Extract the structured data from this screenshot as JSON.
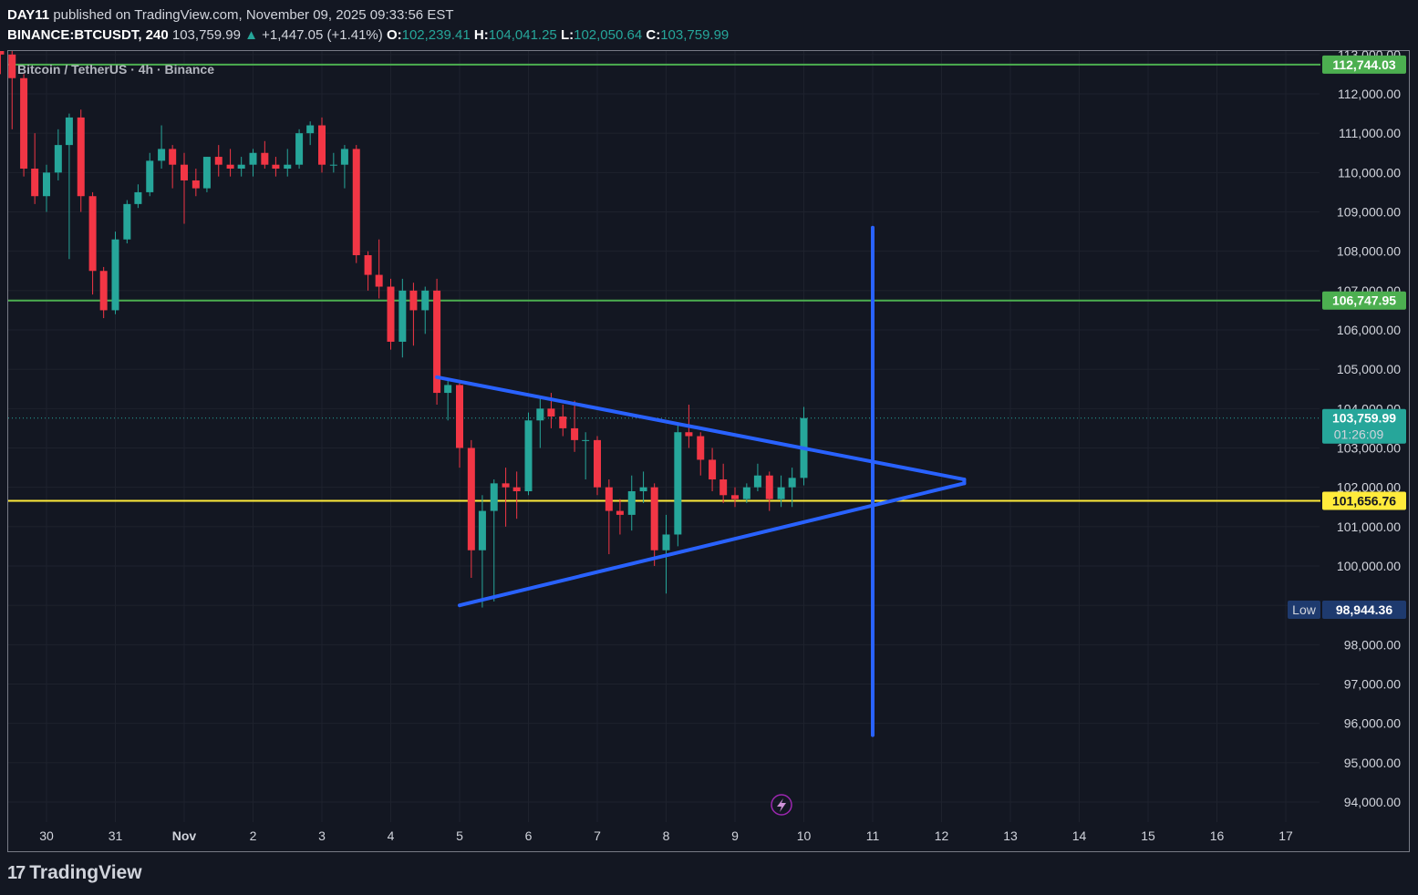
{
  "header": {
    "line1_user": "DAY11",
    "line1_rest": " published on TradingView.com, November 09, 2025 09:33:56 EST",
    "symbol": "BINANCE:BTCUSDT, 240",
    "last": "103,759.99",
    "change_arrow": "▲",
    "change": "+1,447.05 (+1.41%)",
    "o_label": "O:",
    "o": "102,239.41",
    "h_label": "H:",
    "h": "104,041.25",
    "l_label": "L:",
    "l": "102,050.64",
    "c_label": "C:",
    "c": "103,759.99"
  },
  "chart_title": "Bitcoin / TetherUS · 4h · Binance",
  "footer": {
    "brand": "TradingView",
    "logo_icon": "tradingview-logo-icon"
  },
  "colors": {
    "bg": "#131722",
    "up": "#26a69a",
    "down": "#f23645",
    "grid": "#1e222d",
    "green_line": "#4caf50",
    "yellow_line": "#ffeb3b",
    "blue_draw": "#2962ff"
  },
  "chart_data": {
    "type": "candlestick",
    "title": "Bitcoin / TetherUS · 4h · Binance",
    "ylim": [
      93500,
      113500
    ],
    "y_ticks": [
      94000,
      95000,
      96000,
      97000,
      98000,
      99000,
      100000,
      101000,
      102000,
      103000,
      104000,
      105000,
      106000,
      107000,
      108000,
      109000,
      110000,
      111000,
      112000,
      113000
    ],
    "y_tick_labels": [
      "94,000.00",
      "95,000.00",
      "96,000.00",
      "97,000.00",
      "98,000.00",
      "99,000.00",
      "100,000.00",
      "101,000.00",
      "102,000.00",
      "103,000.00",
      "104,000.00",
      "105,000.00",
      "106,000.00",
      "107,000.00",
      "108,000.00",
      "109,000.00",
      "110,000.00",
      "111,000.00",
      "112,000.00",
      "113,000.00"
    ],
    "x_ticks": [
      {
        "day": 30,
        "label": "30"
      },
      {
        "day": 31,
        "label": "31"
      },
      {
        "day": 32,
        "label": "Nov"
      },
      {
        "day": 33,
        "label": "2"
      },
      {
        "day": 34,
        "label": "3"
      },
      {
        "day": 35,
        "label": "4"
      },
      {
        "day": 36,
        "label": "5"
      },
      {
        "day": 37,
        "label": "6"
      },
      {
        "day": 38,
        "label": "7"
      },
      {
        "day": 39,
        "label": "8"
      },
      {
        "day": 40,
        "label": "9"
      },
      {
        "day": 41,
        "label": "10"
      },
      {
        "day": 42,
        "label": "11"
      },
      {
        "day": 43,
        "label": "12"
      },
      {
        "day": 44,
        "label": "13"
      },
      {
        "day": 45,
        "label": "14"
      },
      {
        "day": 46,
        "label": "15"
      },
      {
        "day": 47,
        "label": "16"
      },
      {
        "day": 48,
        "label": "17"
      }
    ],
    "candles": [
      [
        29.33,
        113500,
        114000,
        112500,
        113000
      ],
      [
        29.5,
        113000,
        113200,
        111100,
        112400
      ],
      [
        29.67,
        112400,
        112500,
        109900,
        110100
      ],
      [
        29.83,
        110100,
        111000,
        109200,
        109400
      ],
      [
        30.0,
        109400,
        110200,
        109000,
        110000
      ],
      [
        30.17,
        110000,
        111100,
        109800,
        110700
      ],
      [
        30.33,
        110700,
        111500,
        107800,
        111400
      ],
      [
        30.5,
        111400,
        111600,
        109000,
        109400
      ],
      [
        30.67,
        109400,
        109500,
        106900,
        107500
      ],
      [
        30.83,
        107500,
        107600,
        106300,
        106500
      ],
      [
        31.0,
        106500,
        108500,
        106400,
        108300
      ],
      [
        31.17,
        108300,
        109300,
        108200,
        109200
      ],
      [
        31.33,
        109200,
        109700,
        109100,
        109500
      ],
      [
        31.5,
        109500,
        110500,
        109400,
        110300
      ],
      [
        31.67,
        110300,
        111200,
        110100,
        110600
      ],
      [
        31.83,
        110600,
        110700,
        109600,
        110200
      ],
      [
        32.0,
        110200,
        110500,
        108700,
        109800
      ],
      [
        32.17,
        109800,
        110100,
        109400,
        109600
      ],
      [
        32.33,
        109600,
        110400,
        109500,
        110400
      ],
      [
        32.5,
        110400,
        110700,
        109900,
        110200
      ],
      [
        32.67,
        110200,
        110600,
        109900,
        110100
      ],
      [
        32.83,
        110100,
        110400,
        109900,
        110200
      ],
      [
        33.0,
        110200,
        110600,
        109900,
        110500
      ],
      [
        33.17,
        110500,
        110800,
        110100,
        110200
      ],
      [
        33.33,
        110200,
        110400,
        109900,
        110100
      ],
      [
        33.5,
        110100,
        110600,
        109900,
        110200
      ],
      [
        33.67,
        110200,
        111100,
        110100,
        111000
      ],
      [
        33.83,
        111000,
        111300,
        110700,
        111200
      ],
      [
        34.0,
        111200,
        111400,
        110000,
        110200
      ],
      [
        34.17,
        110200,
        110500,
        110000,
        110200
      ],
      [
        34.33,
        110200,
        110700,
        109600,
        110600
      ],
      [
        34.5,
        110600,
        110700,
        107700,
        107900
      ],
      [
        34.67,
        107900,
        108000,
        107000,
        107400
      ],
      [
        34.83,
        107400,
        108300,
        106800,
        107100
      ],
      [
        35.0,
        107100,
        107300,
        105500,
        105700
      ],
      [
        35.17,
        105700,
        107300,
        105300,
        107000
      ],
      [
        35.33,
        107000,
        107200,
        105600,
        106500
      ],
      [
        35.5,
        106500,
        107100,
        105900,
        107000
      ],
      [
        35.67,
        107000,
        107300,
        104100,
        104400
      ],
      [
        35.83,
        104400,
        104700,
        103700,
        104600
      ],
      [
        36.0,
        104600,
        104700,
        102500,
        103000
      ],
      [
        36.17,
        103000,
        103200,
        99700,
        100400
      ],
      [
        36.33,
        100400,
        101800,
        98944.36,
        101400
      ],
      [
        36.5,
        101400,
        102200,
        99100,
        102100
      ],
      [
        36.67,
        102100,
        102500,
        101000,
        102000
      ],
      [
        36.83,
        102000,
        102400,
        101200,
        101900
      ],
      [
        37.0,
        101900,
        103900,
        101800,
        103700
      ],
      [
        37.17,
        103700,
        104300,
        103000,
        104000
      ],
      [
        37.33,
        104000,
        104400,
        103500,
        103800
      ],
      [
        37.5,
        103800,
        104100,
        103300,
        103500
      ],
      [
        37.67,
        103500,
        104200,
        102900,
        103200
      ],
      [
        37.83,
        103200,
        103400,
        102200,
        103200
      ],
      [
        38.0,
        103200,
        103300,
        101800,
        102000
      ],
      [
        38.17,
        102000,
        102200,
        100300,
        101400
      ],
      [
        38.33,
        101400,
        101700,
        100800,
        101300
      ],
      [
        38.5,
        101300,
        102300,
        100900,
        101900
      ],
      [
        38.67,
        101900,
        102400,
        101600,
        102000
      ],
      [
        38.83,
        102000,
        102100,
        100000,
        100400
      ],
      [
        39.0,
        100400,
        101300,
        99300,
        100800
      ],
      [
        39.17,
        100800,
        103600,
        100500,
        103400
      ],
      [
        39.33,
        103400,
        104100,
        103000,
        103300
      ],
      [
        39.5,
        103300,
        103400,
        102300,
        102700
      ],
      [
        39.67,
        102700,
        103000,
        101900,
        102200
      ],
      [
        39.83,
        102200,
        102600,
        101600,
        101800
      ],
      [
        40.0,
        101800,
        102000,
        101500,
        101700
      ],
      [
        40.17,
        101700,
        102100,
        101600,
        102000
      ],
      [
        40.33,
        102000,
        102600,
        101900,
        102300
      ],
      [
        40.5,
        102300,
        102400,
        101400,
        101700
      ],
      [
        40.67,
        101700,
        102300,
        101500,
        102000
      ],
      [
        40.83,
        102000,
        102500,
        101500,
        102239.41
      ],
      [
        41.0,
        102239.41,
        104041.25,
        102050.64,
        103759.99
      ]
    ],
    "horizontal_lines": [
      {
        "price": 112744.03,
        "label": "112,744.03",
        "color": "#4caf50"
      },
      {
        "price": 106747.95,
        "label": "106,747.95",
        "color": "#4caf50"
      },
      {
        "price": 101656.76,
        "label": "101,656.76",
        "color": "#ffeb3b"
      }
    ],
    "last_price": {
      "price": 103759.99,
      "label": "103,759.99",
      "countdown": "01:26:09"
    },
    "low_marker": {
      "price": 98944.36,
      "label": "98,944.36",
      "tag": "Low"
    },
    "triangle": {
      "upper": [
        [
          35.67,
          104800
        ],
        [
          43.33,
          102200
        ]
      ],
      "lower": [
        [
          36.0,
          99000
        ],
        [
          43.33,
          102100
        ]
      ]
    },
    "vertical_line": {
      "day": 42,
      "from": 95700,
      "to": 108600
    }
  }
}
